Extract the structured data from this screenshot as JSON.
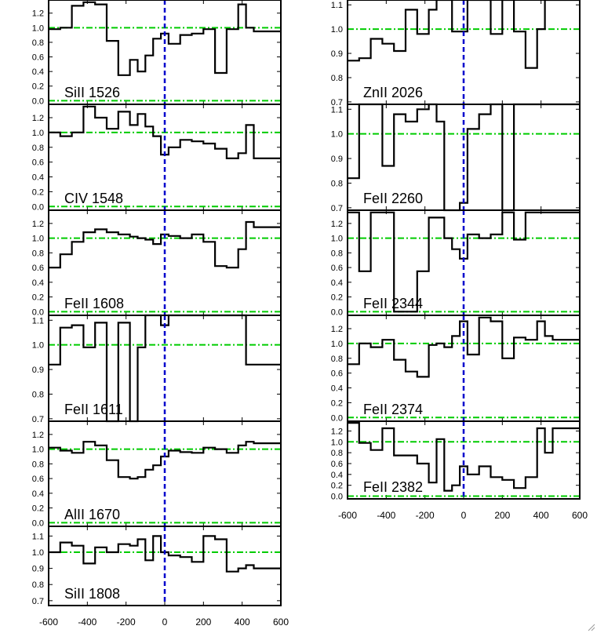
{
  "colors": {
    "frame": "#000000",
    "spectrum": "#000000",
    "continuum": "#00cc00",
    "zero_velocity": "#0000cc",
    "background": "#ffffff"
  },
  "chart_data": [
    {
      "type": "line",
      "panel": "left-1",
      "label": "SiII 1526",
      "xlim": [
        -600,
        600
      ],
      "ylim": [
        -0.05,
        1.38
      ],
      "yticks": [
        "0.0",
        "0.2",
        "0.4",
        "0.6",
        "0.8",
        "1.0",
        "1.2"
      ],
      "continuum": 1.0,
      "zero_level": 0.0,
      "show_x_ticklabels": false,
      "x": [
        -600,
        -540,
        -480,
        -420,
        -360,
        -300,
        -240,
        -180,
        -140,
        -100,
        -60,
        -20,
        20,
        80,
        140,
        200,
        260,
        320,
        380,
        420,
        460
      ],
      "y": [
        0.98,
        1.0,
        1.3,
        1.35,
        1.32,
        0.82,
        0.35,
        0.56,
        0.4,
        0.62,
        0.85,
        0.92,
        0.78,
        0.9,
        0.92,
        0.98,
        0.38,
        0.98,
        1.32,
        1.0,
        0.95
      ]
    },
    {
      "type": "line",
      "panel": "left-2",
      "label": "CIV 1548",
      "xlim": [
        -600,
        600
      ],
      "ylim": [
        -0.05,
        1.38
      ],
      "yticks": [
        "0.0",
        "0.2",
        "0.4",
        "0.6",
        "0.8",
        "1.0",
        "1.2"
      ],
      "continuum": 1.0,
      "zero_level": 0.0,
      "show_x_ticklabels": false,
      "x": [
        -600,
        -540,
        -480,
        -420,
        -360,
        -300,
        -240,
        -180,
        -140,
        -100,
        -60,
        -20,
        20,
        80,
        140,
        200,
        260,
        320,
        380,
        420,
        460
      ],
      "y": [
        1.0,
        0.95,
        1.0,
        1.35,
        1.2,
        1.05,
        1.28,
        1.1,
        1.25,
        1.08,
        0.95,
        0.7,
        0.8,
        0.9,
        0.88,
        0.85,
        0.78,
        0.65,
        0.72,
        1.1,
        0.65
      ]
    },
    {
      "type": "line",
      "panel": "left-3",
      "label": "FeII 1608",
      "xlim": [
        -600,
        600
      ],
      "ylim": [
        -0.05,
        1.38
      ],
      "yticks": [
        "0.0",
        "0.2",
        "0.4",
        "0.6",
        "0.8",
        "1.0",
        "1.2"
      ],
      "continuum": 1.0,
      "zero_level": 0.0,
      "show_x_ticklabels": false,
      "x": [
        -600,
        -540,
        -480,
        -420,
        -360,
        -300,
        -240,
        -180,
        -140,
        -100,
        -60,
        -20,
        20,
        80,
        140,
        200,
        260,
        320,
        380,
        420,
        460
      ],
      "y": [
        0.6,
        0.78,
        0.95,
        1.08,
        1.12,
        1.08,
        1.05,
        1.02,
        1.0,
        0.98,
        0.92,
        1.05,
        1.03,
        1.0,
        1.05,
        0.95,
        0.62,
        0.6,
        0.85,
        1.22,
        1.15
      ]
    },
    {
      "type": "line",
      "panel": "left-4",
      "label": "FeII 1611",
      "xlim": [
        -600,
        600
      ],
      "ylim": [
        0.69,
        1.12
      ],
      "yticks": [
        "0.7",
        "0.8",
        "0.9",
        "1.0",
        "1.1"
      ],
      "continuum": 1.0,
      "show_x_ticklabels": false,
      "x": [
        -600,
        -540,
        -480,
        -420,
        -360,
        -300,
        -240,
        -180,
        -140,
        -100,
        -60,
        -20,
        20,
        80,
        140,
        200,
        260,
        320,
        380,
        420,
        460
      ],
      "y": [
        0.92,
        1.07,
        1.08,
        0.99,
        1.09,
        0.69,
        1.09,
        0.69,
        0.99,
        1.12,
        1.12,
        1.08,
        1.12,
        1.12,
        1.12,
        1.12,
        1.12,
        1.12,
        1.12,
        0.92,
        0.92
      ]
    },
    {
      "type": "line",
      "panel": "left-5",
      "label": "AlII 1670",
      "xlim": [
        -600,
        600
      ],
      "ylim": [
        -0.05,
        1.38
      ],
      "yticks": [
        "0.0",
        "0.2",
        "0.4",
        "0.6",
        "0.8",
        "1.0",
        "1.2"
      ],
      "continuum": 1.0,
      "zero_level": 0.0,
      "show_x_ticklabels": false,
      "x": [
        -600,
        -540,
        -480,
        -420,
        -360,
        -300,
        -240,
        -180,
        -140,
        -100,
        -60,
        -20,
        20,
        80,
        140,
        200,
        260,
        320,
        380,
        420,
        460
      ],
      "y": [
        1.02,
        0.98,
        0.95,
        1.1,
        1.05,
        0.85,
        0.62,
        0.6,
        0.62,
        0.72,
        0.78,
        0.9,
        0.98,
        0.96,
        0.95,
        1.02,
        1.0,
        0.95,
        1.05,
        1.1,
        1.08
      ]
    },
    {
      "type": "line",
      "panel": "left-6",
      "label": "SiII 1808",
      "xlim": [
        -600,
        600
      ],
      "ylim": [
        0.67,
        1.16
      ],
      "yticks": [
        "0.7",
        "0.8",
        "0.9",
        "1.0",
        "1.1"
      ],
      "continuum": 1.0,
      "show_x_ticklabels": true,
      "xticks": [
        "-600",
        "-400",
        "-200",
        "0",
        "200",
        "400",
        "600"
      ],
      "x": [
        -600,
        -540,
        -480,
        -420,
        -360,
        -300,
        -240,
        -180,
        -140,
        -100,
        -60,
        -20,
        20,
        80,
        140,
        200,
        260,
        320,
        380,
        420,
        460
      ],
      "y": [
        1.0,
        1.06,
        1.04,
        0.93,
        1.03,
        1.0,
        1.05,
        1.04,
        1.08,
        0.95,
        1.1,
        1.0,
        0.98,
        0.97,
        0.94,
        1.1,
        1.08,
        0.88,
        0.9,
        0.92,
        0.9
      ]
    },
    {
      "type": "line",
      "panel": "right-1",
      "label": "ZnII 2026",
      "xlim": [
        -600,
        600
      ],
      "ylim": [
        0.69,
        1.12
      ],
      "yticks": [
        "0.7",
        "0.8",
        "0.9",
        "1.0",
        "1.1"
      ],
      "continuum": 1.0,
      "show_x_ticklabels": false,
      "x": [
        -600,
        -540,
        -480,
        -420,
        -360,
        -300,
        -240,
        -180,
        -140,
        -100,
        -60,
        -20,
        20,
        80,
        140,
        200,
        260,
        320,
        380,
        420,
        460
      ],
      "y": [
        0.87,
        0.88,
        0.96,
        0.94,
        0.91,
        1.08,
        0.98,
        1.08,
        1.12,
        1.12,
        0.99,
        0.99,
        1.12,
        1.12,
        0.98,
        1.12,
        0.99,
        0.84,
        1.0,
        1.12,
        1.12
      ]
    },
    {
      "type": "line",
      "panel": "right-2",
      "label": "FeII 2260",
      "xlim": [
        -600,
        600
      ],
      "ylim": [
        0.69,
        1.12
      ],
      "yticks": [
        "0.7",
        "0.8",
        "0.9",
        "1.0",
        "1.1"
      ],
      "continuum": 1.0,
      "show_x_ticklabels": false,
      "x": [
        -600,
        -540,
        -480,
        -420,
        -360,
        -300,
        -240,
        -180,
        -140,
        -100,
        -60,
        -20,
        20,
        80,
        140,
        200,
        260,
        320,
        380,
        420,
        460
      ],
      "y": [
        0.82,
        1.12,
        1.12,
        0.87,
        1.08,
        1.05,
        1.1,
        1.12,
        1.05,
        0.69,
        0.69,
        0.72,
        1.02,
        1.08,
        1.12,
        0.69,
        1.12,
        1.12,
        1.12,
        1.12,
        1.12
      ]
    },
    {
      "type": "line",
      "panel": "right-3",
      "label": "FeII 2344",
      "xlim": [
        -600,
        600
      ],
      "ylim": [
        -0.05,
        1.38
      ],
      "yticks": [
        "0.0",
        "0.2",
        "0.4",
        "0.6",
        "0.8",
        "1.0",
        "1.2"
      ],
      "continuum": 1.0,
      "zero_level": 0.0,
      "show_x_ticklabels": false,
      "x": [
        -600,
        -540,
        -480,
        -420,
        -360,
        -300,
        -240,
        -180,
        -140,
        -100,
        -60,
        -20,
        20,
        80,
        140,
        200,
        260,
        320,
        380,
        420,
        460
      ],
      "y": [
        1.35,
        0.55,
        1.35,
        1.35,
        0.0,
        0.0,
        0.55,
        1.28,
        1.28,
        1.0,
        0.85,
        0.72,
        1.05,
        1.0,
        1.05,
        1.35,
        0.98,
        1.35,
        1.35,
        1.35,
        1.35
      ]
    },
    {
      "type": "line",
      "panel": "right-4",
      "label": "FeII 2374",
      "xlim": [
        -600,
        600
      ],
      "ylim": [
        -0.05,
        1.38
      ],
      "yticks": [
        "0.0",
        "0.2",
        "0.4",
        "0.6",
        "0.8",
        "1.0",
        "1.2"
      ],
      "continuum": 1.0,
      "zero_level": 0.0,
      "show_x_ticklabels": false,
      "x": [
        -600,
        -540,
        -480,
        -420,
        -360,
        -300,
        -240,
        -180,
        -140,
        -100,
        -60,
        -20,
        20,
        80,
        140,
        200,
        260,
        320,
        380,
        420,
        460
      ],
      "y": [
        0.72,
        1.0,
        0.95,
        1.05,
        0.78,
        0.62,
        0.55,
        0.98,
        1.0,
        0.95,
        1.1,
        1.3,
        0.85,
        1.35,
        1.3,
        0.8,
        1.08,
        1.05,
        1.3,
        1.1,
        1.05
      ]
    },
    {
      "type": "line",
      "panel": "right-5",
      "label": "FeII 2382",
      "xlim": [
        -600,
        600
      ],
      "ylim": [
        -0.05,
        1.38
      ],
      "yticks": [
        "0.0",
        "0.2",
        "0.4",
        "0.6",
        "0.8",
        "1.0",
        "1.2"
      ],
      "continuum": 1.0,
      "zero_level": 0.0,
      "show_x_ticklabels": true,
      "xticks": [
        "-600",
        "-400",
        "-200",
        "0",
        "200",
        "400",
        "600"
      ],
      "x": [
        -600,
        -540,
        -480,
        -420,
        -360,
        -300,
        -240,
        -180,
        -140,
        -100,
        -60,
        -20,
        20,
        80,
        140,
        200,
        260,
        320,
        380,
        420,
        460
      ],
      "y": [
        1.35,
        0.98,
        0.85,
        1.25,
        0.75,
        0.75,
        0.6,
        0.25,
        1.05,
        0.1,
        0.2,
        0.55,
        0.4,
        0.55,
        0.35,
        0.3,
        0.15,
        0.35,
        1.25,
        0.8,
        1.25
      ]
    }
  ]
}
